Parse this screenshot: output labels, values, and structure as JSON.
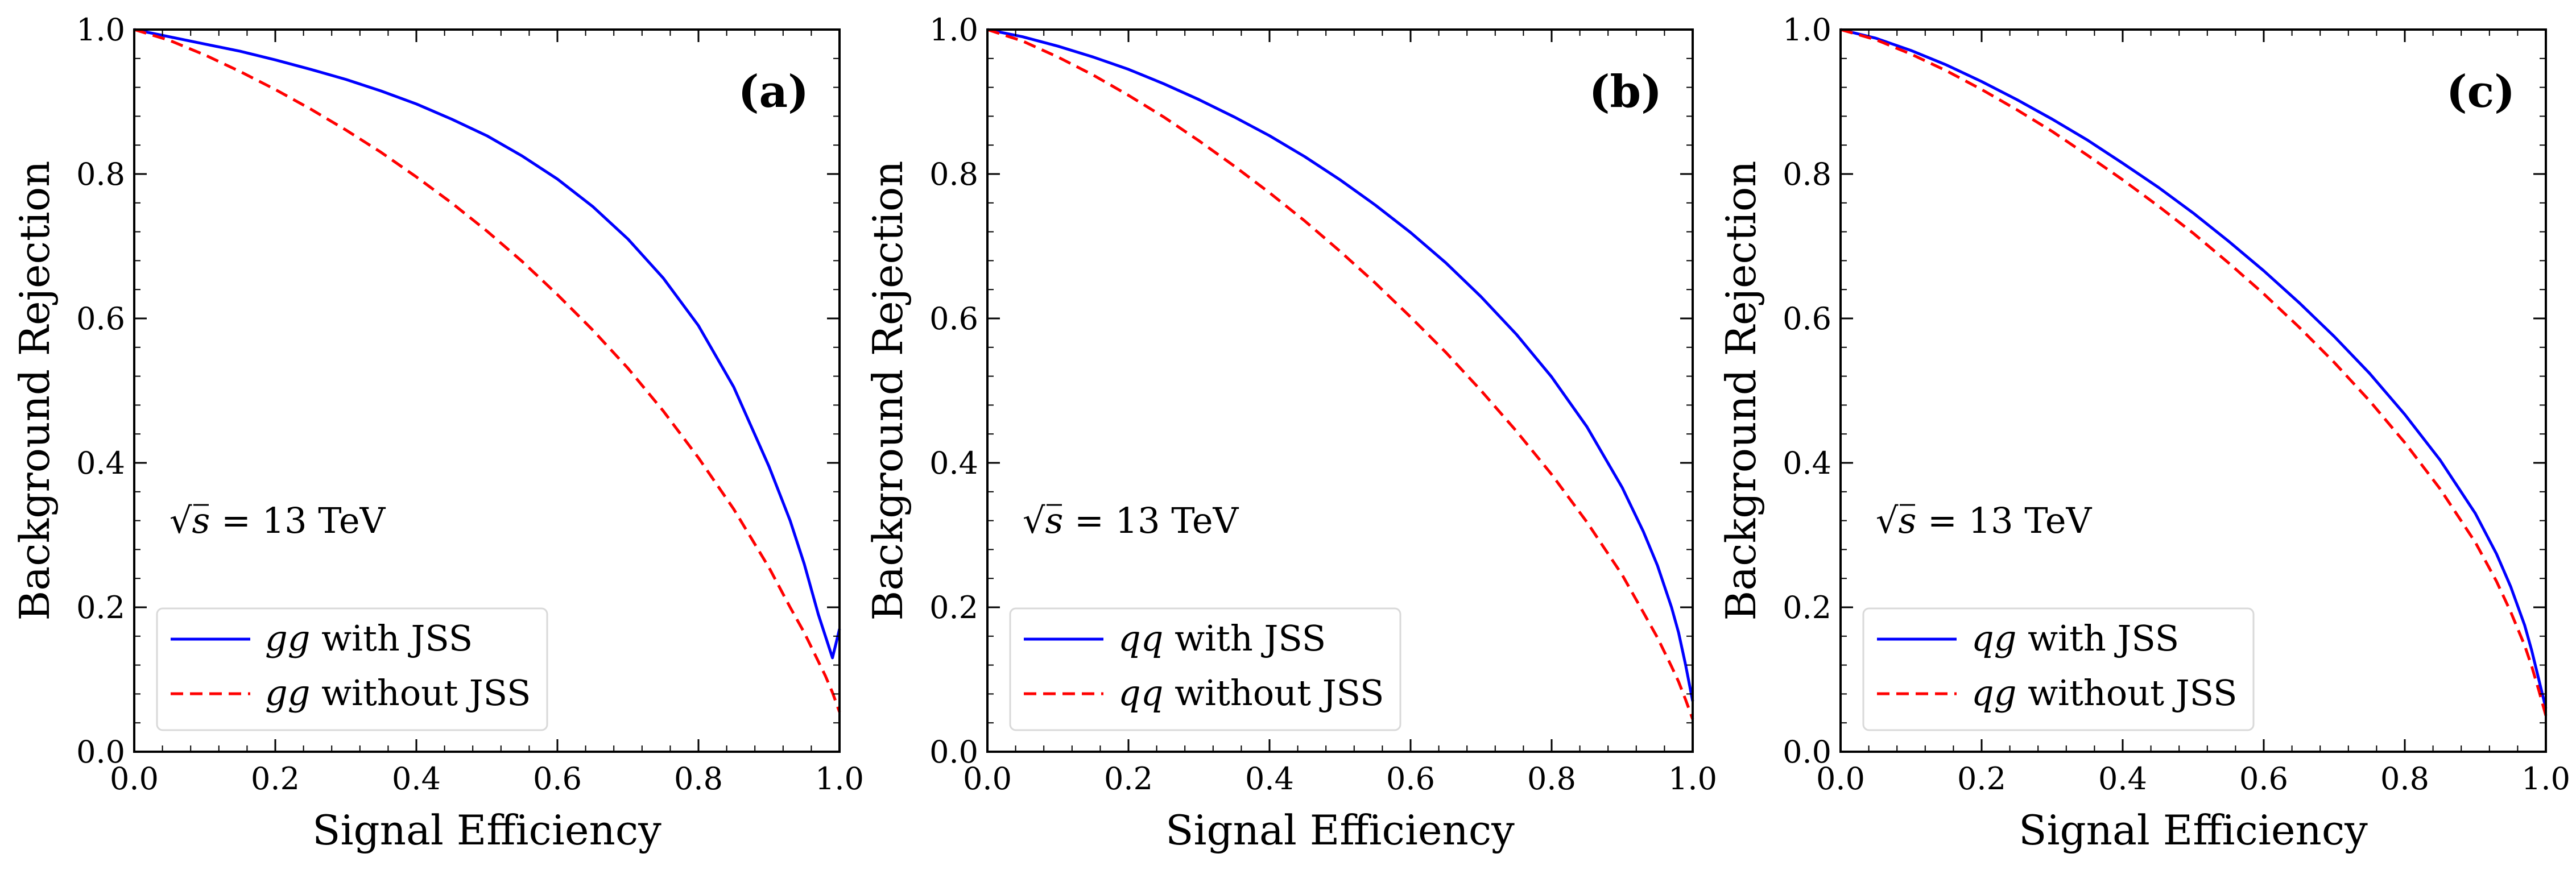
{
  "chart_data": [
    {
      "type": "line",
      "panel_label": "(a)",
      "xlabel": "Signal Efficiency",
      "ylabel": "Background Rejection",
      "xlim": [
        0.0,
        1.0
      ],
      "ylim": [
        0.0,
        1.0
      ],
      "x_ticks": [
        "0.0",
        "0.2",
        "0.4",
        "0.6",
        "0.8",
        "1.0"
      ],
      "y_ticks": [
        "0.0",
        "0.2",
        "0.4",
        "0.6",
        "0.8",
        "1.0"
      ],
      "annotation_prefix": "√s",
      "annotation_suffix": " = 13 TeV",
      "legend_position": "lower-left",
      "grid": false,
      "series": [
        {
          "name_italic": "gg",
          "name_rest": " with JSS",
          "color": "#0000ff",
          "style": "solid",
          "x": [
            0.0,
            0.05,
            0.1,
            0.15,
            0.2,
            0.25,
            0.3,
            0.35,
            0.4,
            0.45,
            0.5,
            0.55,
            0.6,
            0.65,
            0.7,
            0.75,
            0.8,
            0.85,
            0.9,
            0.93,
            0.95,
            0.97,
            0.98,
            0.99,
            1.0
          ],
          "y": [
            1.0,
            0.99,
            0.98,
            0.97,
            0.958,
            0.945,
            0.931,
            0.915,
            0.897,
            0.876,
            0.853,
            0.825,
            0.793,
            0.755,
            0.71,
            0.656,
            0.59,
            0.505,
            0.395,
            0.32,
            0.26,
            0.19,
            0.16,
            0.13,
            0.17
          ]
        },
        {
          "name_italic": "gg",
          "name_rest": " without JSS",
          "color": "#ff0000",
          "style": "dashed",
          "x": [
            0.0,
            0.05,
            0.1,
            0.15,
            0.2,
            0.25,
            0.3,
            0.35,
            0.4,
            0.45,
            0.5,
            0.55,
            0.6,
            0.65,
            0.7,
            0.75,
            0.8,
            0.85,
            0.9,
            0.93,
            0.95,
            0.97,
            0.98,
            0.99,
            1.0
          ],
          "y": [
            1.0,
            0.985,
            0.965,
            0.942,
            0.917,
            0.89,
            0.861,
            0.83,
            0.796,
            0.76,
            0.721,
            0.679,
            0.633,
            0.584,
            0.531,
            0.472,
            0.407,
            0.336,
            0.255,
            0.2,
            0.165,
            0.125,
            0.105,
            0.082,
            0.055
          ]
        }
      ]
    },
    {
      "type": "line",
      "panel_label": "(b)",
      "xlabel": "Signal Efficiency",
      "ylabel": "Background Rejection",
      "xlim": [
        0.0,
        1.0
      ],
      "ylim": [
        0.0,
        1.0
      ],
      "x_ticks": [
        "0.0",
        "0.2",
        "0.4",
        "0.6",
        "0.8",
        "1.0"
      ],
      "y_ticks": [
        "0.0",
        "0.2",
        "0.4",
        "0.6",
        "0.8",
        "1.0"
      ],
      "annotation_prefix": "√s",
      "annotation_suffix": " = 13 TeV",
      "legend_position": "lower-left",
      "grid": false,
      "series": [
        {
          "name_italic": "qq",
          "name_rest": " with JSS",
          "color": "#0000ff",
          "style": "solid",
          "x": [
            0.0,
            0.05,
            0.1,
            0.15,
            0.2,
            0.25,
            0.3,
            0.35,
            0.4,
            0.45,
            0.5,
            0.55,
            0.6,
            0.65,
            0.7,
            0.75,
            0.8,
            0.85,
            0.9,
            0.93,
            0.95,
            0.97,
            0.98,
            0.99,
            1.0
          ],
          "y": [
            1.0,
            0.99,
            0.977,
            0.962,
            0.945,
            0.925,
            0.903,
            0.879,
            0.853,
            0.824,
            0.792,
            0.757,
            0.719,
            0.677,
            0.63,
            0.578,
            0.519,
            0.45,
            0.366,
            0.305,
            0.258,
            0.2,
            0.165,
            0.12,
            0.07
          ]
        },
        {
          "name_italic": "qq",
          "name_rest": " without JSS",
          "color": "#ff0000",
          "style": "dashed",
          "x": [
            0.0,
            0.05,
            0.1,
            0.15,
            0.2,
            0.25,
            0.3,
            0.35,
            0.4,
            0.45,
            0.5,
            0.55,
            0.6,
            0.65,
            0.7,
            0.75,
            0.8,
            0.85,
            0.9,
            0.93,
            0.95,
            0.97,
            0.98,
            0.99,
            1.0
          ],
          "y": [
            1.0,
            0.984,
            0.962,
            0.937,
            0.909,
            0.879,
            0.846,
            0.811,
            0.774,
            0.735,
            0.693,
            0.649,
            0.602,
            0.553,
            0.5,
            0.444,
            0.384,
            0.318,
            0.245,
            0.193,
            0.158,
            0.118,
            0.097,
            0.072,
            0.045
          ]
        }
      ]
    },
    {
      "type": "line",
      "panel_label": "(c)",
      "xlabel": "Signal Efficiency",
      "ylabel": "Background Rejection",
      "xlim": [
        0.0,
        1.0
      ],
      "ylim": [
        0.0,
        1.0
      ],
      "x_ticks": [
        "0.0",
        "0.2",
        "0.4",
        "0.6",
        "0.8",
        "1.0"
      ],
      "y_ticks": [
        "0.0",
        "0.2",
        "0.4",
        "0.6",
        "0.8",
        "1.0"
      ],
      "annotation_prefix": "√s",
      "annotation_suffix": " = 13 TeV",
      "legend_position": "lower-left",
      "grid": false,
      "series": [
        {
          "name_italic": "qg",
          "name_rest": " with JSS",
          "color": "#0000ff",
          "style": "solid",
          "x": [
            0.0,
            0.05,
            0.1,
            0.15,
            0.2,
            0.25,
            0.3,
            0.35,
            0.4,
            0.45,
            0.5,
            0.55,
            0.6,
            0.65,
            0.7,
            0.75,
            0.8,
            0.85,
            0.9,
            0.93,
            0.95,
            0.97,
            0.98,
            0.99,
            1.0
          ],
          "y": [
            1.0,
            0.988,
            0.971,
            0.951,
            0.928,
            0.903,
            0.876,
            0.847,
            0.815,
            0.782,
            0.746,
            0.707,
            0.666,
            0.622,
            0.575,
            0.524,
            0.467,
            0.404,
            0.33,
            0.274,
            0.229,
            0.175,
            0.14,
            0.1,
            0.06
          ]
        },
        {
          "name_italic": "qg",
          "name_rest": " without JSS",
          "color": "#ff0000",
          "style": "dashed",
          "x": [
            0.0,
            0.05,
            0.1,
            0.15,
            0.2,
            0.25,
            0.3,
            0.35,
            0.4,
            0.45,
            0.5,
            0.55,
            0.6,
            0.65,
            0.7,
            0.75,
            0.8,
            0.85,
            0.9,
            0.93,
            0.95,
            0.97,
            0.98,
            0.99,
            1.0
          ],
          "y": [
            1.0,
            0.986,
            0.966,
            0.943,
            0.917,
            0.889,
            0.859,
            0.826,
            0.792,
            0.756,
            0.718,
            0.677,
            0.634,
            0.588,
            0.539,
            0.486,
            0.428,
            0.364,
            0.29,
            0.236,
            0.194,
            0.147,
            0.118,
            0.085,
            0.05
          ]
        }
      ]
    }
  ]
}
